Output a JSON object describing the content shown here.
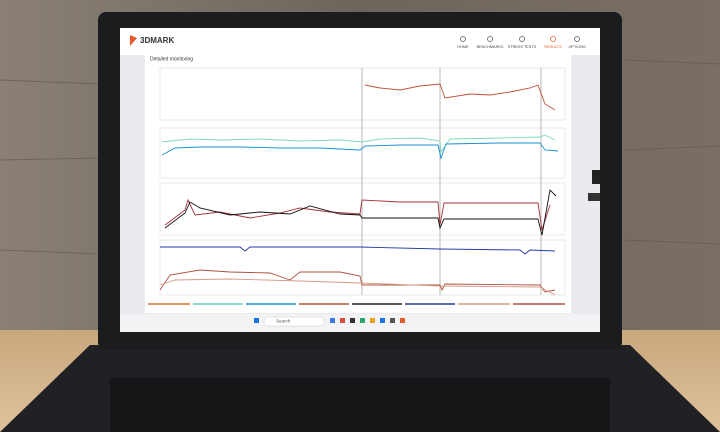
{
  "header": {
    "logo": "3DMARK",
    "nav": [
      "HOME",
      "BENCHMARKS",
      "STRESS TESTS",
      "RESULTS",
      "OPTIONS"
    ]
  },
  "panel": {
    "title": "Detailed monitoring"
  },
  "taskbar": {
    "search": "Search"
  }
}
